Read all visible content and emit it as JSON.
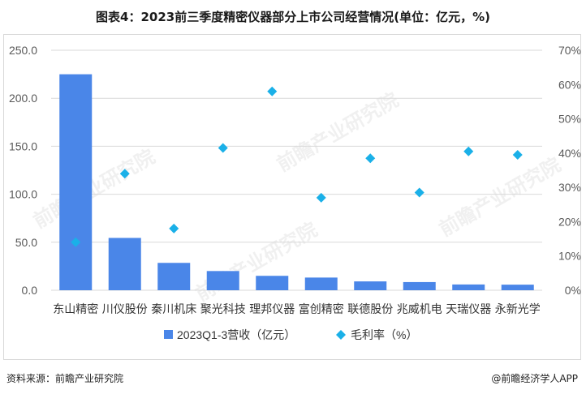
{
  "title": "图表4：2023前三季度精密仪器部分上市公司经营情况(单位：亿元，%)",
  "watermark": "前瞻产业研究院",
  "footer": {
    "source": "资料来源：前瞻产业研究院",
    "brand": "@前瞻经济学人APP"
  },
  "colors": {
    "bar": "#4a86e8",
    "marker": "#1ab0e8",
    "grid": "#d9d9d9",
    "axis_text": "#595959"
  },
  "chart_data": {
    "type": "bar",
    "categories": [
      "东山精密",
      "川仪股份",
      "秦川机床",
      "聚光科技",
      "理邦仪器",
      "富创精密",
      "联德股份",
      "兆威机电",
      "天瑞仪器",
      "永新光学"
    ],
    "series": [
      {
        "name": "2023Q1-3营收（亿元）",
        "type": "bar",
        "axis": "left",
        "values": [
          225.0,
          54.5,
          28.5,
          20.0,
          15.0,
          13.2,
          9.2,
          8.5,
          6.0,
          5.8
        ]
      },
      {
        "name": "毛利率（%）",
        "type": "scatter",
        "axis": "right",
        "values": [
          14.0,
          34.0,
          18.0,
          41.5,
          58.0,
          27.0,
          38.5,
          28.5,
          40.5,
          39.5
        ]
      }
    ],
    "ylim": [
      0,
      250
    ],
    "y_ticks": [
      "0.0",
      "50.0",
      "100.0",
      "150.0",
      "200.0",
      "250.0"
    ],
    "y2lim": [
      0,
      70
    ],
    "y2_ticks": [
      "0%",
      "10%",
      "20%",
      "30%",
      "40%",
      "50%",
      "60%",
      "70%"
    ],
    "grid": true,
    "legend_position": "bottom"
  }
}
